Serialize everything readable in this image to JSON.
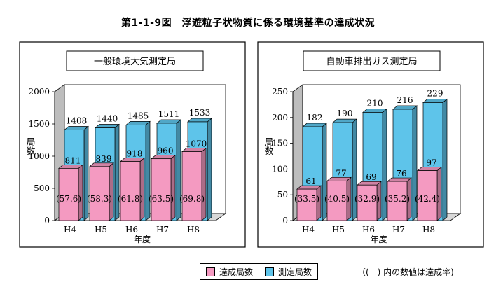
{
  "title": "第1-1-9図　浮遊粒子状物質に係る環境基準の達成状況",
  "colors": {
    "achieved": "#f49ac1",
    "measured": "#5ec4ea",
    "floor": "#d8d8d8",
    "wall": "#ffffff"
  },
  "legend": {
    "achieved": "達成局数",
    "measured": "測定局数"
  },
  "note": "（(　) 内の数値は達成率)",
  "chart_data": [
    {
      "type": "bar",
      "title": "一般環境大気測定局",
      "xlabel": "年度",
      "ylabel": "局数",
      "ylim": [
        0,
        2000
      ],
      "yticks": [
        "0",
        "500",
        "1000",
        "1500",
        "2000"
      ],
      "categories": [
        "H4",
        "H5",
        "H6",
        "H7",
        "H8"
      ],
      "series": [
        {
          "name": "測定局数",
          "values": [
            1408,
            1440,
            1485,
            1511,
            1533
          ]
        },
        {
          "name": "達成局数",
          "values": [
            811,
            839,
            918,
            960,
            1070
          ]
        }
      ],
      "rates": [
        "(57.6)",
        "(58.3)",
        "(61.8)",
        "(63.5)",
        "(69.8)"
      ]
    },
    {
      "type": "bar",
      "title": "自動車排出ガス測定局",
      "xlabel": "年度",
      "ylabel": "局数",
      "ylim": [
        0,
        250
      ],
      "yticks": [
        "0",
        "50",
        "100",
        "150",
        "200",
        "250"
      ],
      "categories": [
        "H4",
        "H5",
        "H6",
        "H7",
        "H8"
      ],
      "series": [
        {
          "name": "測定局数",
          "values": [
            182,
            190,
            210,
            216,
            229
          ]
        },
        {
          "name": "達成局数",
          "values": [
            61,
            77,
            69,
            76,
            97
          ]
        }
      ],
      "rates": [
        "(33.5)",
        "(40.5)",
        "(32.9)",
        "(35.2)",
        "(42.4)"
      ]
    }
  ]
}
